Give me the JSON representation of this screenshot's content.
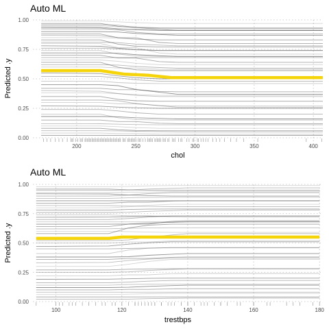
{
  "chart_data": [
    {
      "type": "line",
      "title": "Auto ML",
      "xlabel": "chol",
      "ylabel": "Predicted .y",
      "xlim": [
        163,
        408
      ],
      "ylim": [
        0,
        1
      ],
      "x_ticks": [
        200,
        250,
        300,
        350,
        400
      ],
      "y_ticks": [
        0,
        0.25,
        0.5,
        0.75,
        1
      ],
      "y_tick_labels": [
        "0.00",
        "0.25",
        "0.50",
        "0.75",
        "1.00"
      ],
      "grid": true,
      "legend": "none",
      "highlight_color": "#f5d40a",
      "ice_color": "#555555",
      "highlight_series": {
        "x": [
          170,
          220,
          240,
          260,
          280,
          300,
          330,
          360,
          408
        ],
        "values": [
          0.57,
          0.57,
          0.54,
          0.53,
          0.51,
          0.51,
          0.51,
          0.51,
          0.51
        ]
      },
      "ice_x_breaks": [
        170,
        220,
        235,
        250,
        270,
        285,
        408
      ],
      "ice_starts": [
        0.99,
        0.97,
        0.96,
        0.95,
        0.94,
        0.93,
        0.92,
        0.9,
        0.88,
        0.87,
        0.85,
        0.83,
        0.81,
        0.8,
        0.78,
        0.76,
        0.74,
        0.72,
        0.7,
        0.68,
        0.66,
        0.64,
        0.62,
        0.6,
        0.55,
        0.52,
        0.48,
        0.45,
        0.42,
        0.4,
        0.38,
        0.35,
        0.32,
        0.3,
        0.27,
        0.24,
        0.2,
        0.18,
        0.15,
        0.12,
        0.1,
        0.08,
        0.06,
        0.04,
        0.02
      ],
      "ice_deltas": [
        -0.02,
        -0.04,
        -0.05,
        -0.02,
        -0.03,
        -0.05,
        0,
        -0.03,
        -0.08,
        -0.04,
        -0.02,
        -0.06,
        -0.03,
        -0.09,
        -0.04,
        -0.02,
        -0.05,
        -0.03,
        -0.06,
        0,
        -0.04,
        -0.07,
        -0.03,
        -0.02,
        -0.05,
        -0.04,
        -0.02,
        -0.08,
        -0.03,
        -0.05,
        -0.02,
        -0.04,
        -0.06,
        -0.03,
        -0.02,
        -0.04,
        -0.05,
        -0.02,
        -0.03,
        -0.01,
        -0.02,
        -0.02,
        -0.01,
        -0.01,
        0
      ],
      "rug": [
        172,
        175,
        178,
        182,
        185,
        188,
        192,
        195,
        196,
        197,
        199,
        201,
        203,
        204,
        205,
        207,
        208,
        209,
        210,
        211,
        212,
        213,
        214,
        215,
        216,
        217,
        218,
        219,
        220,
        221,
        222,
        223,
        224,
        225,
        226,
        227,
        228,
        229,
        230,
        231,
        232,
        233,
        234,
        235,
        236,
        237,
        239,
        240,
        241,
        243,
        244,
        245,
        246,
        247,
        248,
        249,
        250,
        252,
        253,
        254,
        256,
        258,
        260,
        261,
        262,
        263,
        264,
        266,
        267,
        268,
        269,
        270,
        271,
        273,
        274,
        275,
        277,
        278,
        281,
        282,
        283,
        286,
        288,
        289,
        293,
        295,
        298,
        299,
        302,
        303,
        305,
        307,
        309,
        311,
        315,
        318,
        321,
        325,
        330,
        335,
        341,
        353,
        394,
        407
      ]
    },
    {
      "type": "line",
      "title": "Auto ML",
      "xlabel": "trestbps",
      "ylabel": "Predicted .y",
      "xlim": [
        93,
        181
      ],
      "ylim": [
        0,
        1
      ],
      "x_ticks": [
        100,
        120,
        140,
        160,
        180
      ],
      "y_ticks": [
        0,
        0.25,
        0.5,
        0.75,
        1
      ],
      "y_tick_labels": [
        "0.00",
        "0.25",
        "0.50",
        "0.75",
        "1.00"
      ],
      "grid": true,
      "legend": "none",
      "highlight_color": "#f5d40a",
      "ice_color": "#555555",
      "highlight_series": {
        "x": [
          94,
          110,
          116,
          120,
          124,
          130,
          140,
          150,
          160,
          170,
          180
        ],
        "values": [
          0.54,
          0.54,
          0.54,
          0.55,
          0.55,
          0.55,
          0.55,
          0.55,
          0.55,
          0.55,
          0.55
        ]
      },
      "ice_x_breaks": [
        94,
        116,
        122,
        128,
        135,
        140,
        180
      ],
      "ice_starts": [
        0.98,
        0.96,
        0.95,
        0.93,
        0.92,
        0.9,
        0.88,
        0.86,
        0.84,
        0.82,
        0.8,
        0.78,
        0.76,
        0.74,
        0.72,
        0.7,
        0.68,
        0.66,
        0.64,
        0.62,
        0.6,
        0.58,
        0.52,
        0.5,
        0.47,
        0.45,
        0.41,
        0.38,
        0.36,
        0.33,
        0.3,
        0.27,
        0.25,
        0.22,
        0.19,
        0.16,
        0.14,
        0.12,
        0.1,
        0.08,
        0.06,
        0.04,
        0.02
      ],
      "ice_deltas": [
        0.01,
        -0.01,
        0.02,
        0.01,
        -0.02,
        0.03,
        0.01,
        0,
        0.02,
        -0.01,
        0.03,
        0.01,
        0.02,
        -0.02,
        0.01,
        0.03,
        0,
        0.02,
        0.05,
        0.01,
        -0.01,
        0.08,
        0.06,
        0.02,
        0.04,
        0.01,
        0.05,
        0.03,
        0.02,
        0.04,
        0.06,
        0.01,
        0.03,
        0.02,
        0.01,
        0.02,
        0.01,
        0.02,
        0.01,
        0,
        0.01,
        0,
        0.01
      ],
      "rug": [
        94,
        100,
        101,
        102,
        104,
        105,
        106,
        108,
        110,
        110,
        112,
        114,
        115,
        117,
        118,
        118,
        120,
        120,
        122,
        124,
        124,
        125,
        126,
        127,
        128,
        128,
        129,
        130,
        130,
        132,
        132,
        134,
        135,
        136,
        138,
        138,
        140,
        140,
        142,
        144,
        145,
        146,
        148,
        150,
        150,
        152,
        155,
        156,
        160,
        160,
        164,
        165,
        170,
        172,
        174,
        178,
        180
      ]
    }
  ]
}
